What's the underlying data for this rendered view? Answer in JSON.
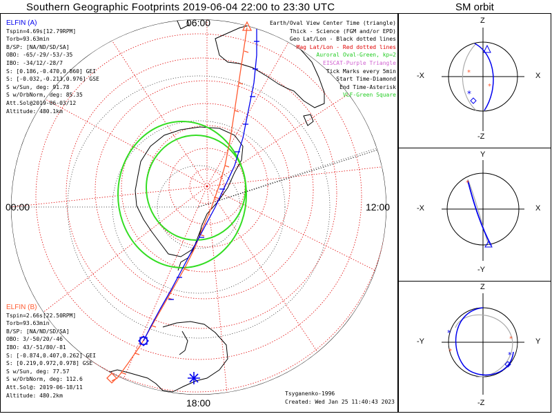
{
  "title": "Southern Geographic Footprints 2019-06-04 22:00 to 23:30 UTC",
  "sm_title": "SM orbit",
  "hour_labels": {
    "top": "06:00",
    "left": "00:00",
    "right": "12:00",
    "bottom": "18:00"
  },
  "elfin_a": {
    "name": "ELFIN (A)",
    "lines": [
      "Tspin=4.69s[12.79RPM]",
      "Torb=93.63min",
      "B/SP: [NA/ND/SD/SA]",
      "OBO: -65/-29/-53/-35",
      "IBO: -34/12/-28/7",
      "S: [0.186,-0.470,0.860] GEI",
      "S: [-0.032,-0.213,0.976] GSE",
      "S w/Sun, deg: 91.78",
      "S w/OrbNorm, deg: 85.35",
      "Att.Sol@2019-06-03/12",
      "Altitude: 480.1km"
    ]
  },
  "elfin_b": {
    "name": "ELFIN (B)",
    "lines": [
      "Tspin=2.66s[22.50RPM]",
      "Torb=93.63min",
      "B/SP: [NA/ND/SD/SA]",
      "OBO: 3/-50/20/-46",
      "IBO: 43/-51/80/-81",
      "S: [-0.874,0.407,0.262] GEI",
      "S: [0.219,0.972,0.978] GSE",
      "S w/Sun, deg: 77.57",
      "S w/OrbNorm, deg: 112.6",
      "Att.Sol@: 2019-06-18/11",
      "Altitude: 480.2km"
    ]
  },
  "legend": [
    {
      "text": "Earth/Oval View Center Time (triangle)",
      "color": "#000000"
    },
    {
      "text": "Thick - Science (FGM and/or EPD)",
      "color": "#000000"
    },
    {
      "text": "Geo Lat/Lon - Black dotted lines",
      "color": "#000000"
    },
    {
      "text": "Mag Lat/Lon - Red dotted lines",
      "color": "#e00000"
    },
    {
      "text": "Auroral Oval-Green, kp=2",
      "color": "#22cc22"
    },
    {
      "text": "EISCAT-Purple Triangle",
      "color": "#d060d0"
    },
    {
      "text": "Tick Marks every 5min",
      "color": "#000000"
    },
    {
      "text": "Start Time-Diamond",
      "color": "#000000"
    },
    {
      "text": "End Time-Asterisk",
      "color": "#000000"
    },
    {
      "text": "VLF-Green Square",
      "color": "#22cc22"
    }
  ],
  "credits": [
    "Tsyganenko-1996",
    "Created: Wed Jan 25 11:40:43 2023"
  ],
  "sm_panels": [
    {
      "top": "Z",
      "bottom": "-Z",
      "left": "-X",
      "right": "X"
    },
    {
      "top": "Y",
      "bottom": "-Y",
      "left": "-X",
      "right": "X"
    },
    {
      "top": "Z",
      "bottom": "-Z",
      "left": "-Y",
      "right": "Y"
    }
  ],
  "colors": {
    "elfin_a": "#0000ee",
    "elfin_b": "#ff5a30",
    "oval": "#33dd22",
    "mag_grid": "#e00000",
    "orbit_gray": "#aaaaaa"
  }
}
